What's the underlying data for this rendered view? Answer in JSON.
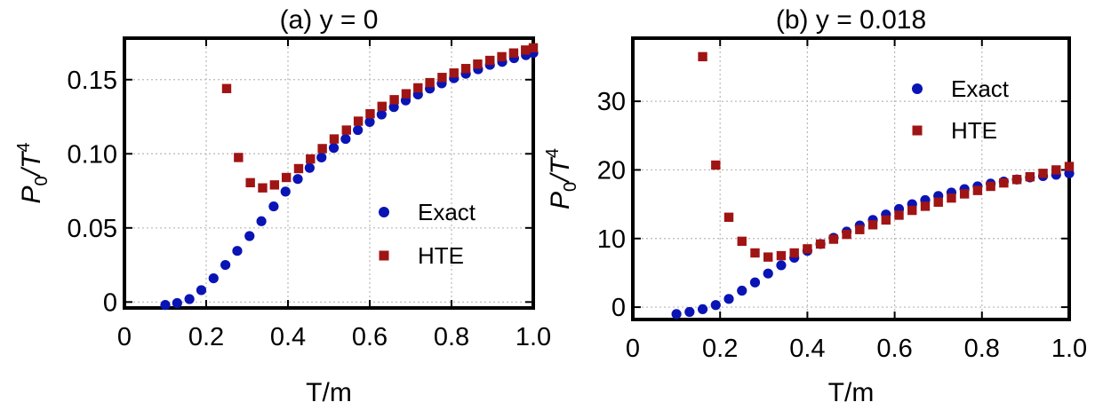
{
  "colors": {
    "exact": "#0a14b4",
    "hte": "#a01414",
    "grid": "#b8b8b8",
    "frame": "#000000"
  },
  "chart_data": [
    {
      "type": "scatter",
      "title": "(a) y = 0",
      "xlabel": "T/m",
      "ylabel": "P0/T4",
      "ylabel_parts": {
        "base": "P",
        "sub": "0",
        "sep": "/T",
        "sup": "4"
      },
      "xlim": [
        0,
        1.0
      ],
      "ylim": [
        -0.004,
        0.178
      ],
      "xticks": [
        0,
        0.2,
        0.4,
        0.6,
        0.8,
        1.0
      ],
      "xtick_labels": [
        "0",
        "0.2",
        "0.4",
        "0.6",
        "0.8",
        "1.0"
      ],
      "yticks": [
        0,
        0.05,
        0.1,
        0.15
      ],
      "ytick_labels": [
        "0",
        "0.05",
        "0.10",
        "0.15"
      ],
      "grid": true,
      "legend_position": "right-middle",
      "series": [
        {
          "name": "Exact",
          "marker": "circle",
          "x": [
            0.1,
            0.129,
            0.159,
            0.188,
            0.218,
            0.247,
            0.276,
            0.306,
            0.335,
            0.365,
            0.394,
            0.424,
            0.453,
            0.482,
            0.512,
            0.541,
            0.571,
            0.6,
            0.629,
            0.659,
            0.688,
            0.718,
            0.747,
            0.776,
            0.806,
            0.835,
            0.865,
            0.894,
            0.924,
            0.953,
            0.982,
            1.0
          ],
          "y": [
            -0.002,
            -0.0007,
            0.002,
            0.008,
            0.016,
            0.025,
            0.0345,
            0.0445,
            0.0545,
            0.0645,
            0.0745,
            0.083,
            0.0905,
            0.0975,
            0.104,
            0.11,
            0.116,
            0.1215,
            0.1265,
            0.1315,
            0.136,
            0.14,
            0.144,
            0.1475,
            0.151,
            0.154,
            0.157,
            0.16,
            0.162,
            0.1645,
            0.1665,
            0.168
          ]
        },
        {
          "name": "HTE",
          "marker": "square",
          "x": [
            0.25,
            0.279,
            0.308,
            0.338,
            0.367,
            0.396,
            0.426,
            0.455,
            0.484,
            0.513,
            0.543,
            0.572,
            0.601,
            0.63,
            0.66,
            0.689,
            0.718,
            0.747,
            0.777,
            0.806,
            0.835,
            0.864,
            0.894,
            0.923,
            0.952,
            0.981,
            1.0
          ],
          "y": [
            0.144,
            0.0975,
            0.0805,
            0.077,
            0.079,
            0.084,
            0.09,
            0.0965,
            0.1035,
            0.11,
            0.116,
            0.122,
            0.127,
            0.132,
            0.1365,
            0.1405,
            0.1445,
            0.148,
            0.1515,
            0.1545,
            0.1575,
            0.1605,
            0.163,
            0.1655,
            0.168,
            0.17,
            0.1715
          ]
        }
      ]
    },
    {
      "type": "scatter",
      "title": "(b) y = 0.018",
      "xlabel": "T/m",
      "ylabel": "P0/T4",
      "ylabel_parts": {
        "base": "P",
        "sub": "0",
        "sep": "/T",
        "sup": "4"
      },
      "xlim": [
        0,
        1.0
      ],
      "ylim": [
        -1.8,
        39.2
      ],
      "xticks": [
        0,
        0.2,
        0.4,
        0.6,
        0.8,
        1.0
      ],
      "xtick_labels": [
        "0",
        "0.2",
        "0.4",
        "0.6",
        "0.8",
        "1.0"
      ],
      "yticks": [
        0,
        10,
        20,
        30
      ],
      "ytick_labels": [
        "0",
        "10",
        "20",
        "30"
      ],
      "grid": true,
      "legend_position": "top-right",
      "series": [
        {
          "name": "Exact",
          "marker": "circle",
          "x": [
            0.1,
            0.13,
            0.16,
            0.19,
            0.22,
            0.25,
            0.28,
            0.31,
            0.34,
            0.37,
            0.4,
            0.43,
            0.46,
            0.49,
            0.52,
            0.55,
            0.58,
            0.61,
            0.64,
            0.67,
            0.7,
            0.73,
            0.76,
            0.79,
            0.82,
            0.85,
            0.88,
            0.91,
            0.94,
            0.97,
            1.0
          ],
          "y": [
            -1.0,
            -0.7,
            -0.3,
            0.3,
            1.2,
            2.4,
            3.6,
            4.9,
            6.1,
            7.2,
            8.2,
            9.2,
            10.1,
            11.0,
            11.9,
            12.7,
            13.5,
            14.3,
            15.0,
            15.6,
            16.2,
            16.7,
            17.2,
            17.6,
            18.0,
            18.3,
            18.6,
            18.9,
            19.1,
            19.3,
            19.5
          ]
        },
        {
          "name": "HTE",
          "marker": "square",
          "x": [
            0.16,
            0.19,
            0.22,
            0.25,
            0.28,
            0.31,
            0.34,
            0.37,
            0.4,
            0.43,
            0.46,
            0.49,
            0.52,
            0.55,
            0.58,
            0.61,
            0.64,
            0.67,
            0.7,
            0.73,
            0.76,
            0.79,
            0.82,
            0.85,
            0.88,
            0.91,
            0.94,
            0.97,
            1.0
          ],
          "y": [
            36.5,
            20.7,
            13.1,
            9.6,
            7.9,
            7.3,
            7.5,
            7.9,
            8.5,
            9.2,
            9.9,
            10.6,
            11.3,
            12.0,
            12.7,
            13.4,
            14.1,
            14.7,
            15.3,
            15.9,
            16.5,
            17.0,
            17.6,
            18.1,
            18.6,
            19.0,
            19.5,
            20.0,
            20.5
          ]
        }
      ]
    }
  ]
}
